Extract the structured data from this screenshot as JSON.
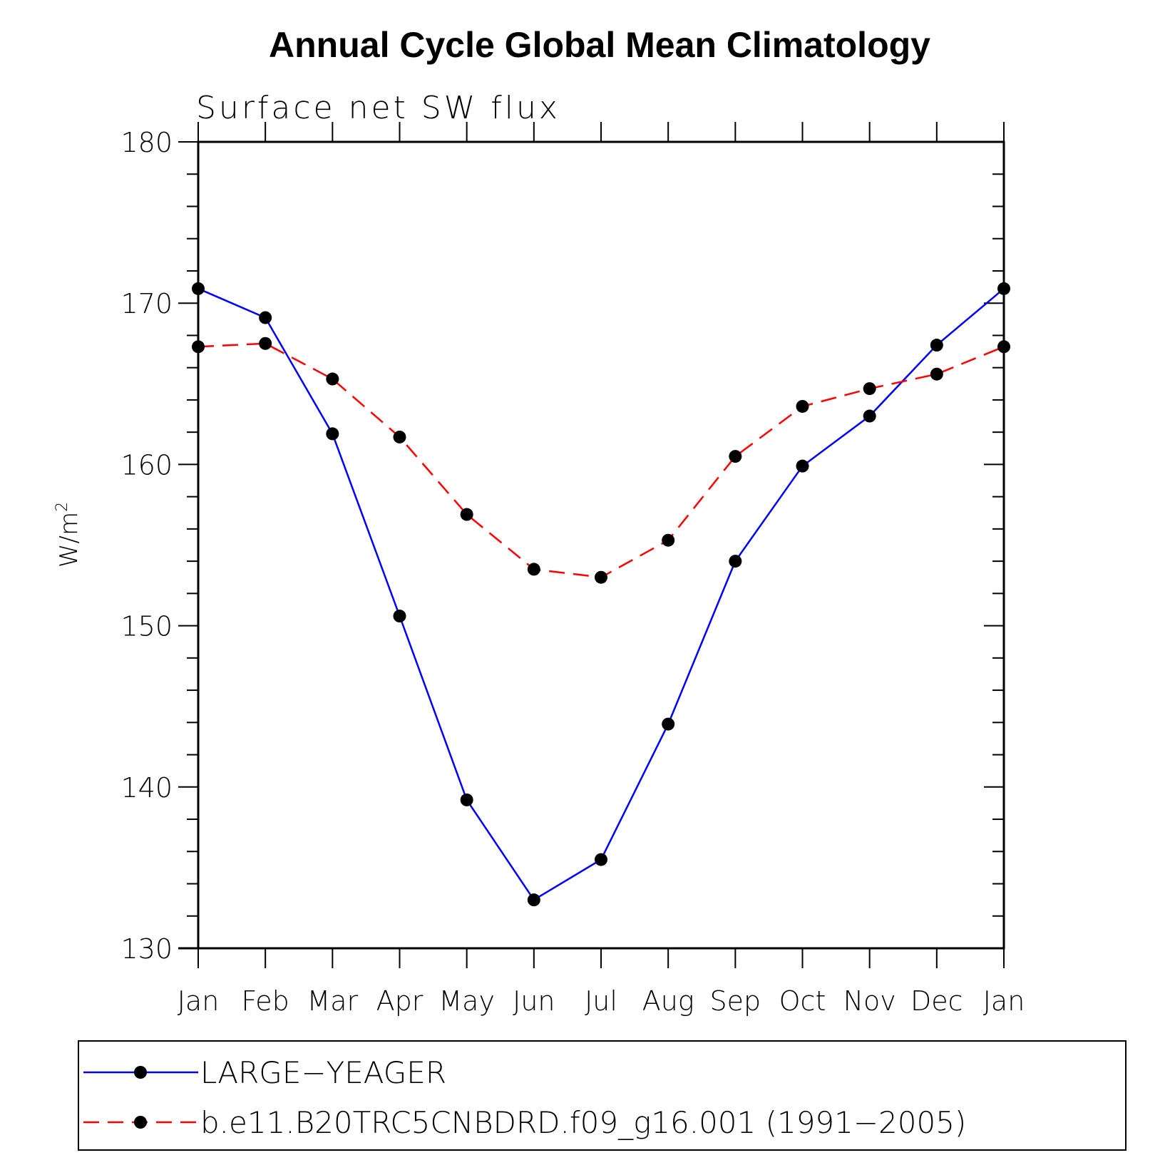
{
  "chart_data": {
    "type": "line",
    "title": "Annual Cycle Global Mean Climatology",
    "subtitle": "Surface net SW flux",
    "ylabel": "W/m",
    "ylabel_superscript": "2",
    "xlabel": "",
    "categories": [
      "Jan",
      "Feb",
      "Mar",
      "Apr",
      "May",
      "Jun",
      "Jul",
      "Aug",
      "Sep",
      "Oct",
      "Nov",
      "Dec",
      "Jan"
    ],
    "ylim": [
      130,
      180
    ],
    "yticks": [
      130,
      140,
      150,
      160,
      170,
      180
    ],
    "grid": false,
    "legend_position": "bottom",
    "series": [
      {
        "name": "LARGE−YEAGER",
        "color": "#0000ff",
        "dash": "solid",
        "values": [
          170.9,
          169.1,
          161.9,
          150.6,
          139.2,
          133.0,
          135.5,
          143.9,
          154.0,
          159.9,
          163.0,
          167.4,
          170.9
        ]
      },
      {
        "name": "b.e11.B20TRC5CNBDRD.f09_g16.001 (1991−2005)",
        "color": "#ff0000",
        "dash": "dashed",
        "values": [
          167.3,
          167.5,
          165.3,
          161.7,
          156.9,
          153.5,
          153.0,
          155.3,
          160.5,
          163.6,
          164.7,
          165.6,
          167.3
        ]
      }
    ]
  }
}
